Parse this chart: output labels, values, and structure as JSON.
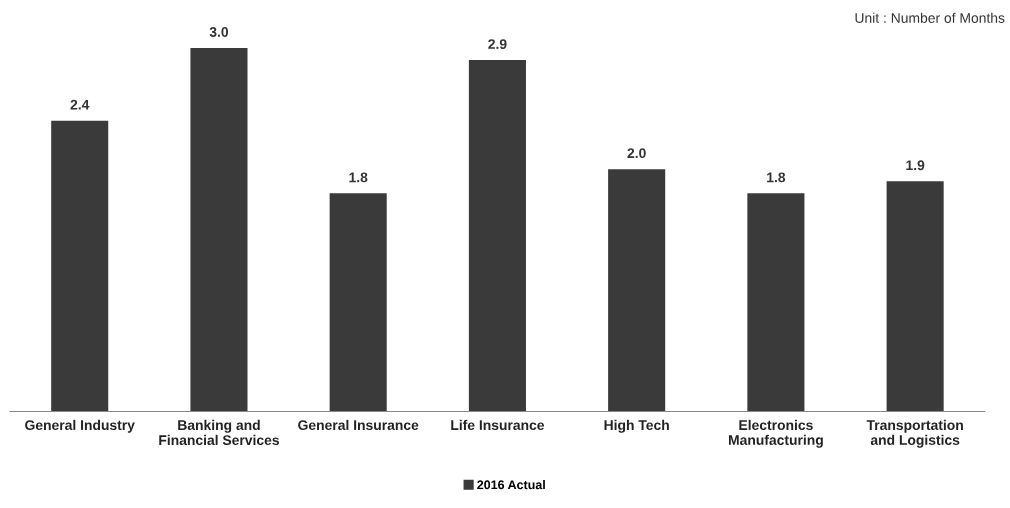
{
  "chart_data": {
    "type": "bar",
    "categories": [
      "General Industry",
      "Banking and\nFinancial Services",
      "General Insurance",
      "Life Insurance",
      "High Tech",
      "Electronics\nManufacturing",
      "Transportation\nand Logistics"
    ],
    "series": [
      {
        "name": "2016 Actual",
        "color": "#3a3a3a",
        "values": [
          2.4,
          3.0,
          1.8,
          2.9,
          2.0,
          1.8,
          1.9
        ],
        "value_labels": [
          "2.4",
          "3.0",
          "1.8",
          "2.9",
          "2.0",
          "1.8",
          "1.9"
        ]
      }
    ],
    "legend": "bottom",
    "grid": false,
    "tick_labels": "x",
    "annotations": [
      "Unit : Number of Months"
    ]
  }
}
